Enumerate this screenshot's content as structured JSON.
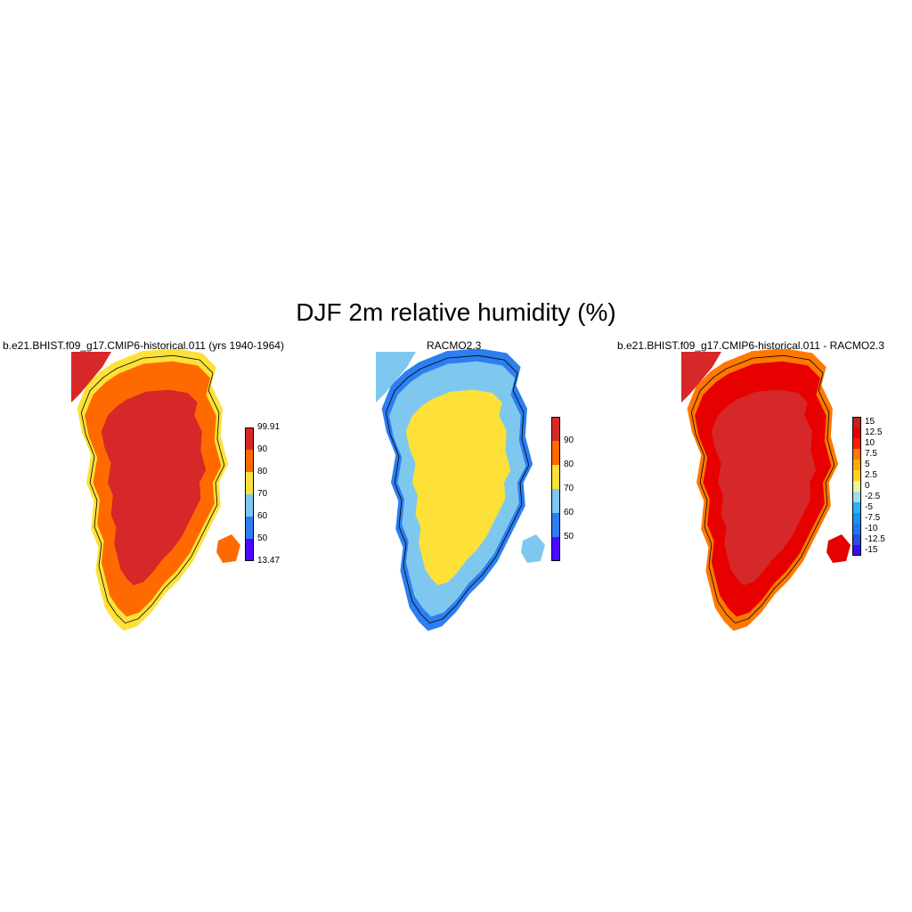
{
  "title": "DJF 2m relative humidity (%)",
  "panels": [
    {
      "title": "b.e21.BHIST.f09_g17.CMIP6-historical.011 (yrs 1940-1964)",
      "colorbar": {
        "colors": [
          "#4b0aff",
          "#2d7ef0",
          "#7ec8f0",
          "#fde138",
          "#ff6a00",
          "#d62828"
        ],
        "labels": [
          "13.47",
          "50",
          "60",
          "70",
          "80",
          "90",
          "99.91"
        ]
      },
      "map": {
        "interior": "#d62828",
        "ring": "#ff6a00",
        "edge": "#fde138"
      }
    },
    {
      "title": "RACMO2.3",
      "colorbar": {
        "colors": [
          "#4b0aff",
          "#2d7ef0",
          "#7ec8f0",
          "#fde138",
          "#ff6a00",
          "#d62828"
        ],
        "labels": [
          "50",
          "60",
          "70",
          "80",
          "90"
        ]
      },
      "map": {
        "interior": "#fde138",
        "ring": "#7ec8f0",
        "edge": "#2d7ef0"
      }
    },
    {
      "title": "b.e21.BHIST.f09_g17.CMIP6-historical.011 - RACMO2.3",
      "colorbar": {
        "colors": [
          "#3a0af5",
          "#2450e6",
          "#1e78f0",
          "#1496f0",
          "#28b4f5",
          "#a6daf0",
          "#f0f0a0",
          "#ffd21e",
          "#ffaa00",
          "#ff7800",
          "#ff1e00",
          "#e60000",
          "#c81e1e"
        ],
        "labels": [
          "-15",
          "-12.5",
          "-10",
          "-7.5",
          "-5",
          "-2.5",
          "0",
          "2.5",
          "5",
          "7.5",
          "10",
          "12.5",
          "15"
        ]
      },
      "map": {
        "interior": "#d62828",
        "ring": "#e60000",
        "edge": "#ff7800"
      }
    }
  ]
}
